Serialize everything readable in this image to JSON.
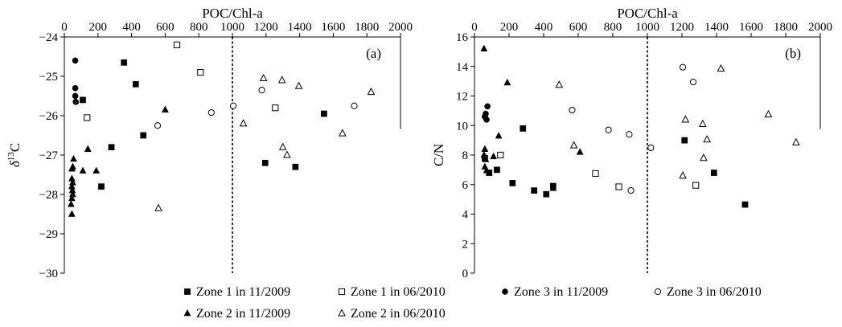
{
  "colors": {
    "ink": "#000000",
    "background": "#ffffff",
    "open_marker_fill": "#ffffff"
  },
  "legend": {
    "placement": "bottom",
    "entries": [
      {
        "label": "Zone 1 in 11/2009",
        "marker": "filled-square"
      },
      {
        "label": "Zone 1 in 06/2010",
        "marker": "open-square"
      },
      {
        "label": "Zone 3 in 11/2009",
        "marker": "filled-circle"
      },
      {
        "label": "Zone 3 in 06/2010",
        "marker": "open-circle"
      },
      {
        "label": "Zone 2 in 11/2009",
        "marker": "filled-triangle"
      },
      {
        "label": "Zone 2 in 06/2010",
        "marker": "open-triangle"
      }
    ]
  },
  "chart_data": [
    {
      "type": "scatter",
      "panel_label": "(a)",
      "xlabel": "POC/Chl-a",
      "ylabel_main": "δ",
      "ylabel_sup": "13",
      "ylabel_tail": "C",
      "x_axis_position": "top",
      "xlim": [
        0,
        2000
      ],
      "ylim": [
        -30,
        -24
      ],
      "x_ticks": [
        "0",
        "200",
        "400",
        "600",
        "800",
        "1000",
        "1200",
        "1400",
        "1600",
        "1800",
        "2000"
      ],
      "y_ticks": [
        "−24",
        "−25",
        "−26",
        "−27",
        "−28",
        "−29",
        "−30"
      ],
      "grid": false,
      "reference_line_x": 1000,
      "series": [
        {
          "name": "Zone 1 in 11/2009",
          "marker": "filled-square",
          "points": [
            [
              355,
              -24.65
            ],
            [
              425,
              -25.2
            ],
            [
              110,
              -25.6
            ],
            [
              470,
              -26.5
            ],
            [
              280,
              -26.8
            ],
            [
              220,
              -27.8
            ],
            [
              1195,
              -27.2
            ],
            [
              1375,
              -27.3
            ],
            [
              1545,
              -25.95
            ]
          ]
        },
        {
          "name": "Zone 1 in 06/2010",
          "marker": "open-square",
          "points": [
            [
              670,
              -24.2
            ],
            [
              810,
              -24.9
            ],
            [
              135,
              -26.05
            ],
            [
              1255,
              -25.8
            ]
          ]
        },
        {
          "name": "Zone 3 in 11/2009",
          "marker": "filled-circle",
          "points": [
            [
              65,
              -24.6
            ],
            [
              65,
              -25.3
            ],
            [
              65,
              -25.5
            ],
            [
              68,
              -25.65
            ]
          ]
        },
        {
          "name": "Zone 3 in 06/2010",
          "marker": "open-circle",
          "points": [
            [
              555,
              -26.25
            ],
            [
              875,
              -25.92
            ],
            [
              1005,
              -25.75
            ],
            [
              1175,
              -25.35
            ],
            [
              1725,
              -25.75
            ]
          ]
        },
        {
          "name": "Zone 2 in 11/2009",
          "marker": "filled-triangle",
          "points": [
            [
              600,
              -25.85
            ],
            [
              140,
              -26.85
            ],
            [
              110,
              -27.4
            ],
            [
              190,
              -27.4
            ],
            [
              55,
              -27.1
            ],
            [
              50,
              -27.3
            ],
            [
              45,
              -27.35
            ],
            [
              45,
              -27.6
            ],
            [
              50,
              -27.7
            ],
            [
              45,
              -27.8
            ],
            [
              48,
              -27.9
            ],
            [
              50,
              -28.0
            ],
            [
              45,
              -28.1
            ],
            [
              40,
              -28.25
            ],
            [
              45,
              -28.5
            ]
          ]
        },
        {
          "name": "Zone 2 in 06/2010",
          "marker": "open-triangle",
          "points": [
            [
              1185,
              -25.05
            ],
            [
              1295,
              -25.1
            ],
            [
              1395,
              -25.25
            ],
            [
              1065,
              -26.2
            ],
            [
              1300,
              -26.8
            ],
            [
              1325,
              -27.0
            ],
            [
              1655,
              -26.45
            ],
            [
              1825,
              -25.4
            ],
            [
              560,
              -28.35
            ]
          ]
        }
      ]
    },
    {
      "type": "scatter",
      "panel_label": "(b)",
      "xlabel": "POC/Chl-a",
      "ylabel_main": "C/N",
      "ylabel_sup": "",
      "ylabel_tail": "",
      "x_axis_position": "top",
      "xlim": [
        0,
        2000
      ],
      "ylim": [
        0,
        16
      ],
      "x_ticks": [
        "0",
        "200",
        "400",
        "600",
        "800",
        "1000",
        "1200",
        "1400",
        "1600",
        "1800",
        "2000"
      ],
      "y_ticks": [
        "16",
        "14",
        "12",
        "10",
        "8",
        "6",
        "4",
        "2",
        "0"
      ],
      "grid": false,
      "reference_line_x": 1000,
      "series": [
        {
          "name": "Zone 1 in 11/2009",
          "marker": "filled-square",
          "points": [
            [
              60,
              7.8
            ],
            [
              85,
              6.8
            ],
            [
              130,
              7.0
            ],
            [
              280,
              9.8
            ],
            [
              220,
              6.1
            ],
            [
              345,
              5.6
            ],
            [
              415,
              5.35
            ],
            [
              455,
              5.9
            ],
            [
              1215,
              9.0
            ],
            [
              1385,
              6.8
            ],
            [
              1565,
              4.65
            ]
          ]
        },
        {
          "name": "Zone 1 in 06/2010",
          "marker": "open-square",
          "points": [
            [
              150,
              8.0
            ],
            [
              700,
              6.75
            ],
            [
              835,
              5.85
            ],
            [
              1280,
              5.95
            ]
          ]
        },
        {
          "name": "Zone 3 in 11/2009",
          "marker": "filled-circle",
          "points": [
            [
              75,
              11.3
            ],
            [
              65,
              10.8
            ],
            [
              70,
              10.4
            ],
            [
              60,
              10.6
            ]
          ]
        },
        {
          "name": "Zone 3 in 06/2010",
          "marker": "open-circle",
          "points": [
            [
              565,
              11.05
            ],
            [
              775,
              9.7
            ],
            [
              895,
              9.4
            ],
            [
              905,
              5.6
            ],
            [
              1020,
              8.5
            ],
            [
              1205,
              13.95
            ],
            [
              1265,
              12.95
            ]
          ]
        },
        {
          "name": "Zone 2 in 11/2009",
          "marker": "filled-triangle",
          "points": [
            [
              55,
              15.2
            ],
            [
              190,
              12.9
            ],
            [
              140,
              9.3
            ],
            [
              60,
              8.4
            ],
            [
              55,
              8.0
            ],
            [
              65,
              7.7
            ],
            [
              60,
              7.2
            ],
            [
              70,
              6.95
            ],
            [
              110,
              7.9
            ],
            [
              455,
              5.75
            ],
            [
              610,
              8.2
            ]
          ]
        },
        {
          "name": "Zone 2 in 06/2010",
          "marker": "open-triangle",
          "points": [
            [
              490,
              12.75
            ],
            [
              575,
              8.65
            ],
            [
              1220,
              10.4
            ],
            [
              1320,
              10.1
            ],
            [
              1345,
              9.05
            ],
            [
              1325,
              7.8
            ],
            [
              1205,
              6.6
            ],
            [
              1425,
              13.85
            ],
            [
              1700,
              10.75
            ],
            [
              1860,
              8.85
            ]
          ]
        }
      ]
    }
  ]
}
